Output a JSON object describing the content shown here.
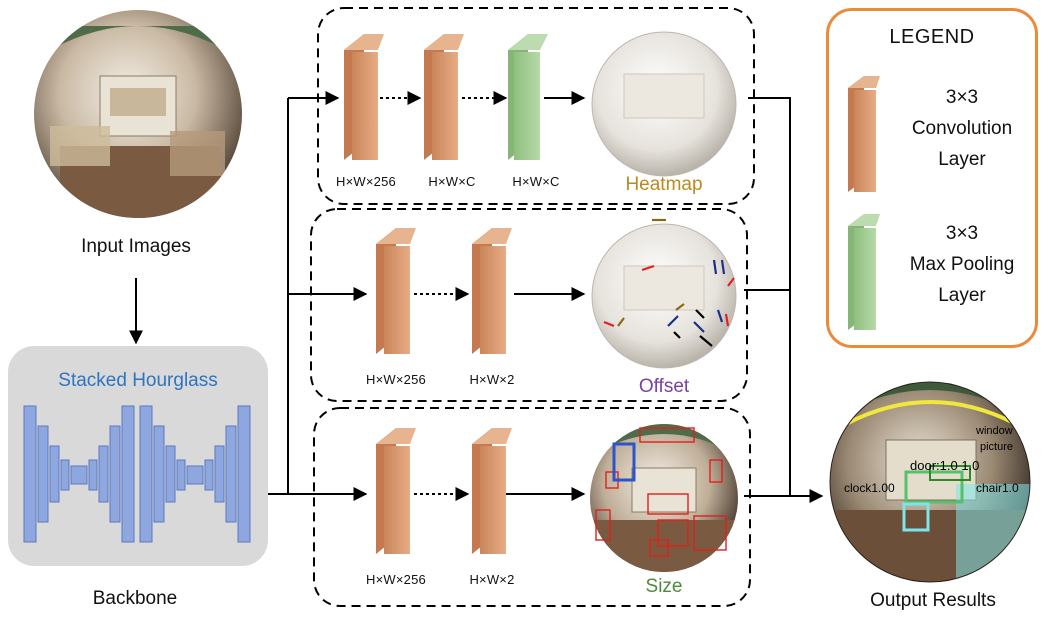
{
  "input_label": "Input Images",
  "backbone": {
    "title": "Stacked Hourglass",
    "label": "Backbone"
  },
  "branches": [
    {
      "name": "Heatmap",
      "color": "#b98b20",
      "dims": [
        "H×W×256",
        "H×W×C",
        "H×W×C"
      ]
    },
    {
      "name": "Offset",
      "color": "#7b3fa6",
      "dims": [
        "H×W×256",
        "H×W×2"
      ]
    },
    {
      "name": "Size",
      "color": "#4f8a3a",
      "dims": [
        "H×W×256",
        "H×W×2"
      ]
    }
  ],
  "output_label": "Output Results",
  "output_detections": [
    "door:1.0 1.0",
    "clock1.00",
    "window",
    "picture",
    "chair1.0"
  ],
  "legend": {
    "title": "LEGEND",
    "conv_label_1": "3×3",
    "conv_label_2": "Convolution",
    "conv_label_3": "Layer",
    "pool_label_1": "3×3",
    "pool_label_2": "Max Pooling",
    "pool_label_3": "Layer"
  },
  "colors": {
    "conv": "#dd9a6c",
    "pool": "#9fca8f",
    "hourglass": "#8ea7df",
    "legend_border": "#ec8a3c",
    "backbone_bg": "#d9d9d9"
  }
}
